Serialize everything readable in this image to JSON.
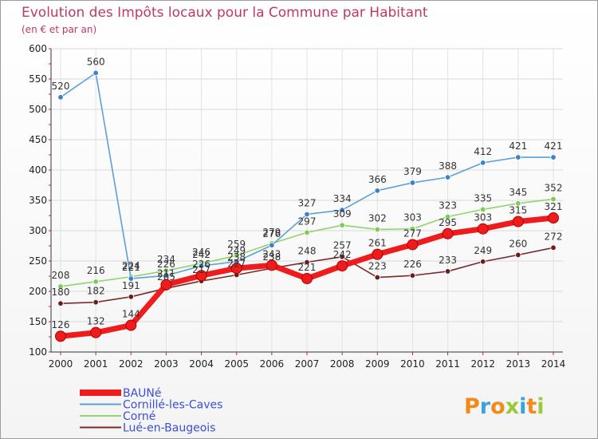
{
  "chart_data": {
    "type": "line",
    "title": "Evolution des Impôts locaux pour la Commune par Habitant",
    "subtitle": "(en € et par an)",
    "xlabel": "",
    "ylabel": "",
    "x": [
      "2000",
      "2001",
      "2002",
      "2003",
      "2004",
      "2005",
      "2006",
      "2007",
      "2008",
      "2009",
      "2010",
      "2011",
      "2012",
      "2013",
      "2014"
    ],
    "ylim": [
      100,
      600
    ],
    "yticks": [
      100,
      150,
      200,
      250,
      300,
      350,
      400,
      450,
      500,
      550,
      600
    ],
    "grid": true,
    "legend": "bottom-left",
    "series": [
      {
        "name": "BAUNé",
        "color": "#ee1c1c",
        "marker": "#ee1c1c",
        "values": [
          126,
          132,
          144,
          211,
          226,
          238,
          243,
          221,
          242,
          261,
          277,
          295,
          303,
          315,
          321
        ],
        "labels": [
          "126",
          "132",
          "144",
          "211",
          "226",
          "238",
          "243",
          "221",
          "242",
          "261",
          "277",
          "295",
          "303",
          "315",
          "321"
        ]
      },
      {
        "name": "Cornillé-les-Caves",
        "color": "#5e9fd8",
        "marker": "#3b82c8",
        "values": [
          520,
          560,
          221,
          226,
          242,
          249,
          276,
          327,
          334,
          366,
          379,
          388,
          412,
          421,
          421
        ],
        "labels": [
          "520",
          "560",
          "221",
          "226",
          "242",
          "249",
          "276",
          "327",
          "334",
          "366",
          "379",
          "388",
          "412",
          "421",
          "421"
        ]
      },
      {
        "name": "Corné",
        "color": "#8fd46e",
        "marker": "#7ccc55",
        "values": [
          208,
          216,
          224,
          234,
          246,
          259,
          279,
          297,
          309,
          302,
          303,
          323,
          335,
          345,
          352
        ],
        "labels": [
          "208",
          "216",
          "224",
          "234",
          "246",
          "259",
          "279",
          "297",
          "309",
          "302",
          "303",
          "323",
          "335",
          "345",
          "352"
        ]
      },
      {
        "name": "Lué-en-Baugeois",
        "color": "#7a2a2a",
        "marker": "#6a1f1f",
        "values": [
          180,
          182,
          191,
          205,
          217,
          227,
          238,
          248,
          257,
          223,
          226,
          233,
          249,
          260,
          272
        ],
        "labels": [
          "180",
          "182",
          "191",
          "205",
          "217",
          "227",
          "238",
          "248",
          "257",
          "223",
          "226",
          "233",
          "249",
          "260",
          "272"
        ]
      }
    ]
  },
  "brand": {
    "logo_text": "Proxiti"
  }
}
